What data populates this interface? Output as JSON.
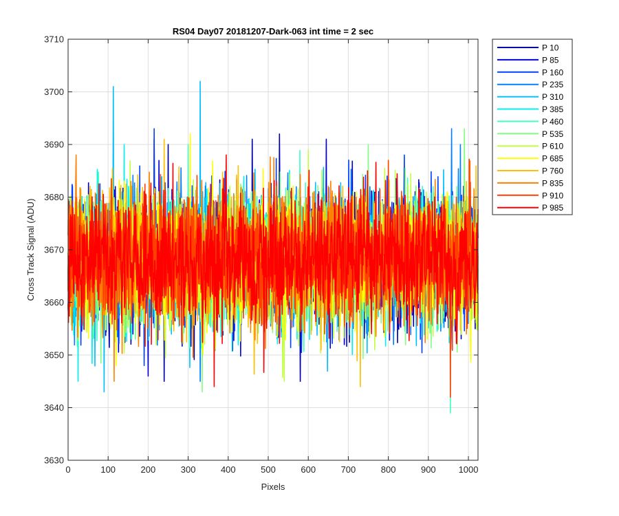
{
  "chart_data": {
    "type": "line",
    "title": "RS04 Day07 20181207-Dark-063 int time = 2 sec",
    "xlabel": "Pixels",
    "ylabel": "Cross Track Signal (ADU)",
    "xlim": [
      0,
      1024
    ],
    "ylim": [
      3630,
      3710
    ],
    "xticks": [
      0,
      100,
      200,
      300,
      400,
      500,
      600,
      700,
      800,
      900,
      1000
    ],
    "yticks": [
      3630,
      3640,
      3650,
      3660,
      3670,
      3680,
      3690,
      3700,
      3710
    ],
    "grid": true,
    "legend_position": "outside-top-right",
    "noise": {
      "mean": 3668,
      "spread_typical": 6,
      "approx_min": 3639,
      "approx_max": 3702
    },
    "series": [
      {
        "name": "P 10",
        "color": "#0000aa",
        "peaks": [
          [
            250,
            3690
          ],
          [
            460,
            3691
          ],
          [
            528,
            3692
          ]
        ],
        "dips": [
          [
            240,
            3645
          ],
          [
            580,
            3645
          ]
        ]
      },
      {
        "name": "P 85",
        "color": "#0000dd",
        "peaks": [
          [
            215,
            3691
          ],
          [
            645,
            3691
          ]
        ],
        "dips": [
          [
            200,
            3646
          ]
        ]
      },
      {
        "name": "P 160",
        "color": "#0040ff",
        "peaks": [
          [
            215,
            3693
          ],
          [
            840,
            3688
          ]
        ],
        "dips": [
          [
            190,
            3648
          ]
        ]
      },
      {
        "name": "P 235",
        "color": "#0080ff",
        "peaks": [
          [
            958,
            3693
          ],
          [
            980,
            3690
          ]
        ],
        "dips": [
          [
            330,
            3645
          ]
        ]
      },
      {
        "name": "P 310",
        "color": "#00bfff",
        "peaks": [
          [
            113,
            3701
          ],
          [
            330,
            3702
          ]
        ],
        "dips": [
          [
            90,
            3643
          ]
        ]
      },
      {
        "name": "P 385",
        "color": "#00f0f0",
        "peaks": [
          [
            140,
            3690
          ]
        ],
        "dips": [
          [
            25,
            3645
          ]
        ]
      },
      {
        "name": "P 460",
        "color": "#40ffc0",
        "peaks": [
          [
            300,
            3690
          ]
        ],
        "dips": [
          [
            955,
            3639
          ]
        ]
      },
      {
        "name": "P 535",
        "color": "#80ff80",
        "peaks": [
          [
            750,
            3690
          ],
          [
            990,
            3693
          ]
        ],
        "dips": [
          [
            335,
            3643
          ]
        ]
      },
      {
        "name": "P 610",
        "color": "#c0ff40",
        "peaks": [
          [
            600,
            3689
          ]
        ],
        "dips": [
          [
            540,
            3645
          ]
        ]
      },
      {
        "name": "P 685",
        "color": "#ffff00",
        "peaks": [
          [
            305,
            3692
          ]
        ],
        "dips": [
          [
            120,
            3648
          ]
        ]
      },
      {
        "name": "P 760",
        "color": "#ffbf00",
        "peaks": [
          [
            240,
            3691
          ]
        ],
        "dips": [
          [
            730,
            3644
          ]
        ]
      },
      {
        "name": "P 835",
        "color": "#ff8000",
        "peaks": [
          [
            20,
            3688
          ]
        ],
        "dips": [
          [
            115,
            3645
          ]
        ]
      },
      {
        "name": "P 910",
        "color": "#ff4000",
        "peaks": [
          [
            800,
            3687
          ]
        ],
        "dips": [
          [
            955,
            3642
          ]
        ]
      },
      {
        "name": "P 985",
        "color": "#ff0000",
        "peaks": [
          [
            395,
            3688
          ]
        ],
        "dips": [
          [
            365,
            3644
          ]
        ]
      }
    ]
  }
}
